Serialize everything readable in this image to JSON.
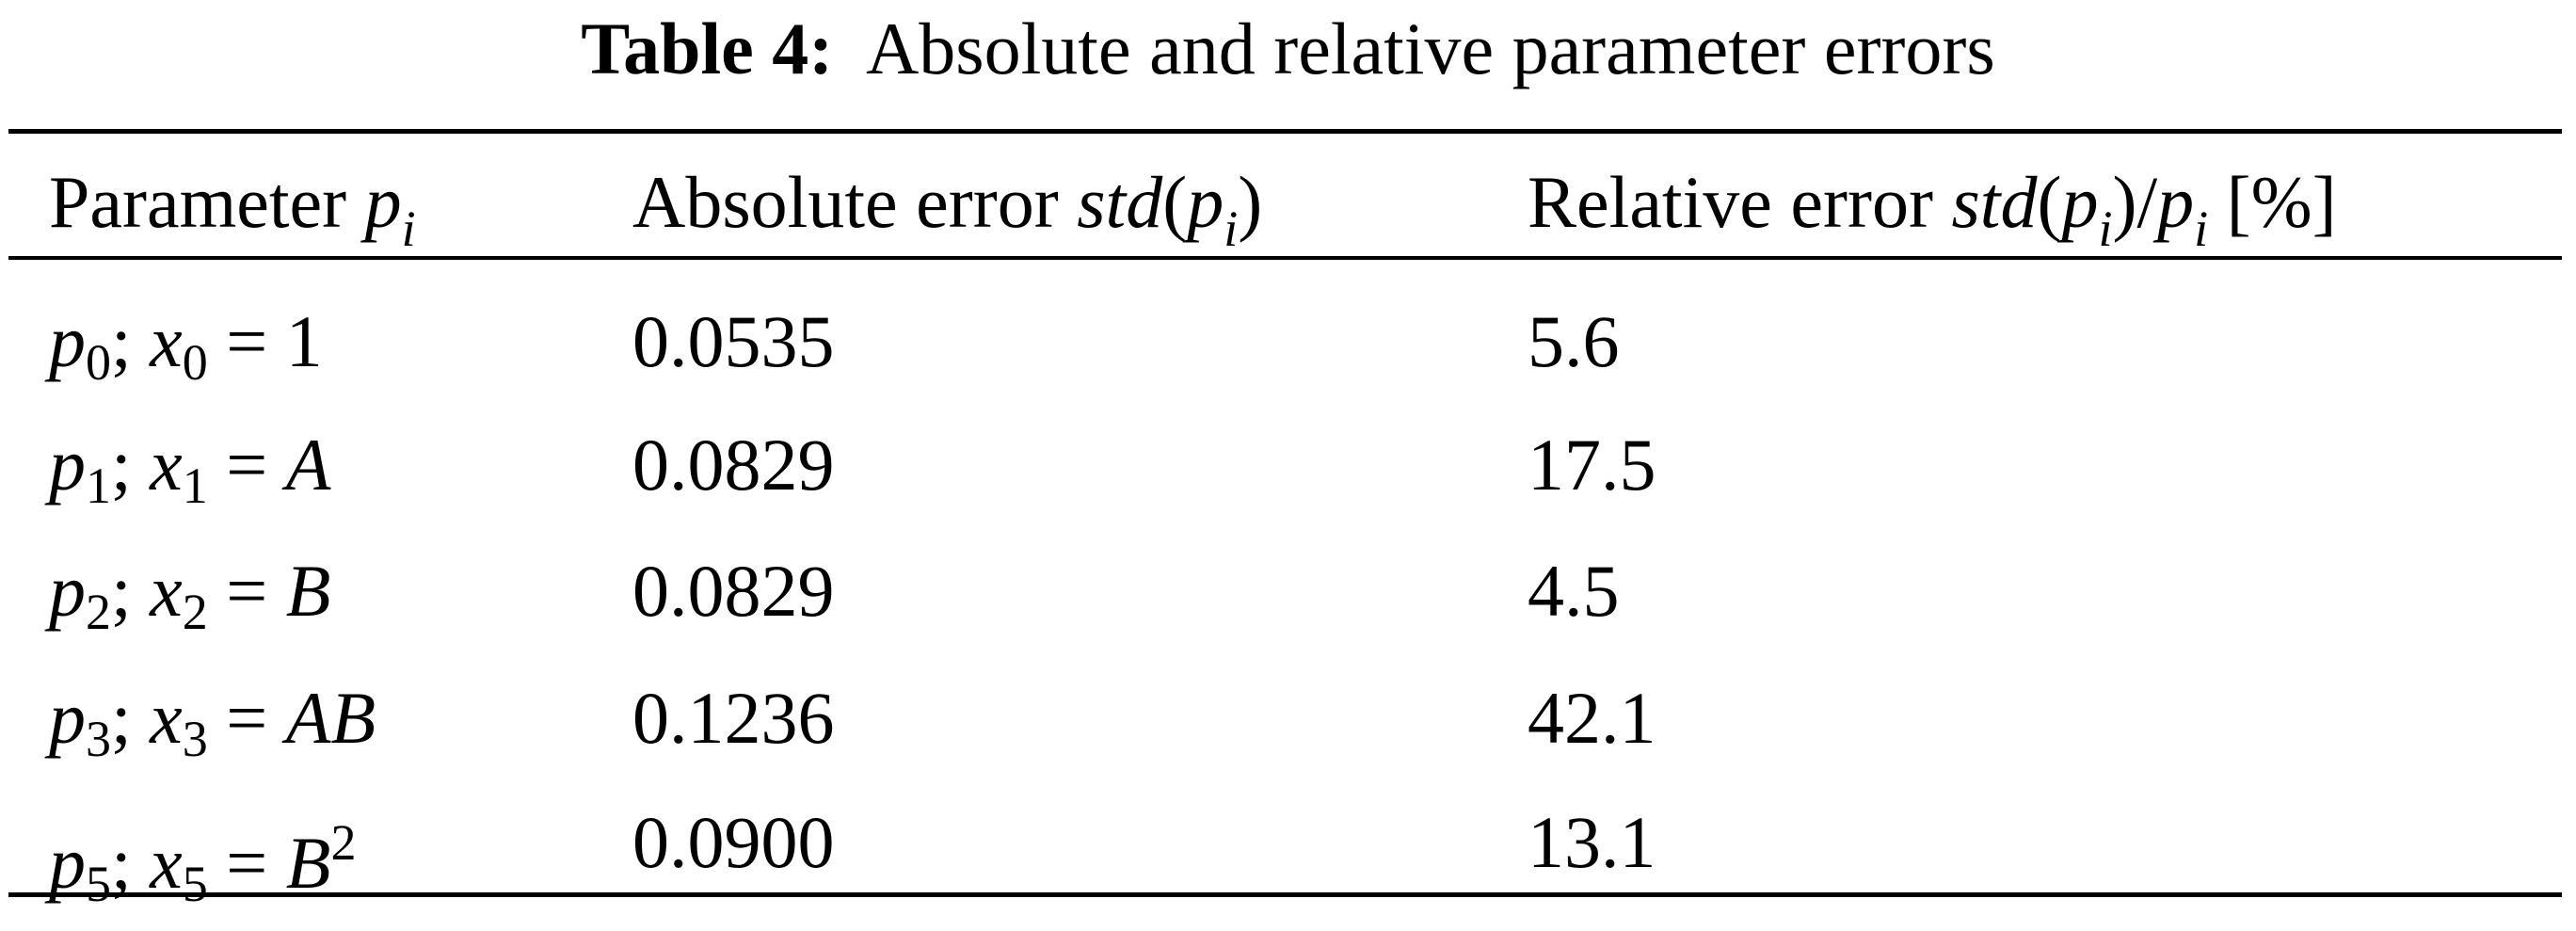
{
  "title": {
    "label": "Table 4:",
    "text": "Absolute and relative parameter errors"
  },
  "table": {
    "header": [
      [
        {
          "t": "Parameter ",
          "s": "r"
        },
        {
          "t": "p",
          "s": "i"
        },
        {
          "t": "i",
          "s": "isub"
        }
      ],
      [
        {
          "t": "Absolute error ",
          "s": "r"
        },
        {
          "t": "std",
          "s": "i"
        },
        {
          "t": "(",
          "s": "r"
        },
        {
          "t": "p",
          "s": "i"
        },
        {
          "t": "i",
          "s": "isub"
        },
        {
          "t": ")",
          "s": "r"
        }
      ],
      [
        {
          "t": "Relative error ",
          "s": "r"
        },
        {
          "t": "std",
          "s": "i"
        },
        {
          "t": "(",
          "s": "r"
        },
        {
          "t": "p",
          "s": "i"
        },
        {
          "t": "i",
          "s": "isub"
        },
        {
          "t": ")/",
          "s": "r"
        },
        {
          "t": "p",
          "s": "i"
        },
        {
          "t": "i",
          "s": "isub"
        },
        {
          "t": " [%]",
          "s": "r"
        }
      ]
    ],
    "rows": [
      {
        "parameter": [
          {
            "t": "p",
            "s": "i"
          },
          {
            "t": "0",
            "s": "sub"
          },
          {
            "t": "; ",
            "s": "r"
          },
          {
            "t": "x",
            "s": "i"
          },
          {
            "t": "0",
            "s": "sub"
          },
          {
            "t": " = ",
            "s": "r"
          },
          {
            "t": "1",
            "s": "r"
          }
        ],
        "absolute": "0.0535",
        "relative": 5.6
      },
      {
        "parameter": [
          {
            "t": "p",
            "s": "i"
          },
          {
            "t": "1",
            "s": "sub"
          },
          {
            "t": "; ",
            "s": "r"
          },
          {
            "t": "x",
            "s": "i"
          },
          {
            "t": "1",
            "s": "sub"
          },
          {
            "t": " = ",
            "s": "r"
          },
          {
            "t": "A",
            "s": "i"
          }
        ],
        "absolute": "0.0829",
        "relative": 17.5
      },
      {
        "parameter": [
          {
            "t": "p",
            "s": "i"
          },
          {
            "t": "2",
            "s": "sub"
          },
          {
            "t": "; ",
            "s": "r"
          },
          {
            "t": "x",
            "s": "i"
          },
          {
            "t": "2",
            "s": "sub"
          },
          {
            "t": " = ",
            "s": "r"
          },
          {
            "t": "B",
            "s": "i"
          }
        ],
        "absolute": "0.0829",
        "relative": 4.5
      },
      {
        "parameter": [
          {
            "t": "p",
            "s": "i"
          },
          {
            "t": "3",
            "s": "sub"
          },
          {
            "t": "; ",
            "s": "r"
          },
          {
            "t": "x",
            "s": "i"
          },
          {
            "t": "3",
            "s": "sub"
          },
          {
            "t": " = ",
            "s": "r"
          },
          {
            "t": "AB",
            "s": "i"
          }
        ],
        "absolute": "0.1236",
        "relative": 42.1
      },
      {
        "parameter": [
          {
            "t": "p",
            "s": "i"
          },
          {
            "t": "5",
            "s": "sub"
          },
          {
            "t": "; ",
            "s": "r"
          },
          {
            "t": "x",
            "s": "i"
          },
          {
            "t": "5",
            "s": "sub"
          },
          {
            "t": " = ",
            "s": "r"
          },
          {
            "t": "B",
            "s": "i"
          },
          {
            "t": "2",
            "s": "sup"
          }
        ],
        "absolute": "0.0900",
        "relative": 13.1
      }
    ]
  }
}
